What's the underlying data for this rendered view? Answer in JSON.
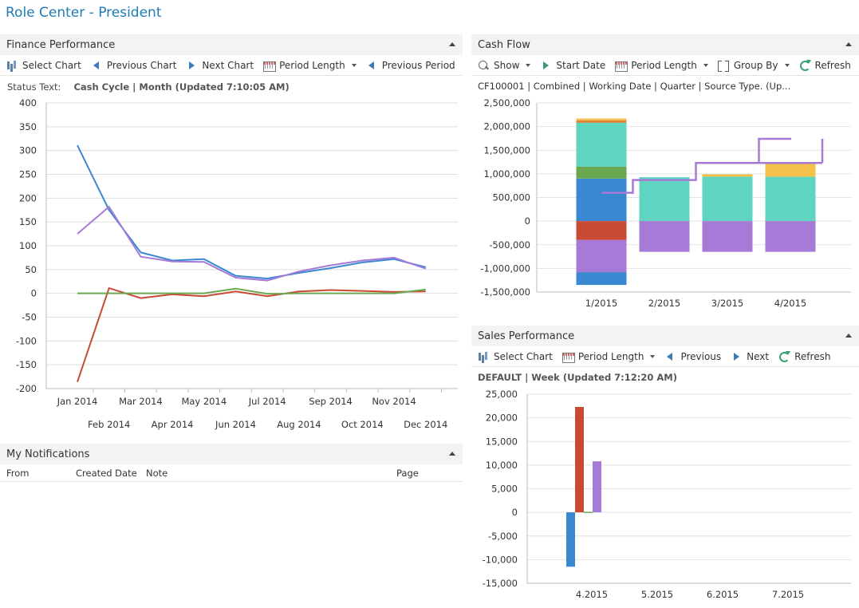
{
  "page": {
    "title": "Role Center - President"
  },
  "finance": {
    "title": "Finance Performance",
    "toolbar": {
      "select_chart": "Select Chart",
      "previous_chart": "Previous Chart",
      "next_chart": "Next Chart",
      "period_length": "Period Length",
      "previous_period": "Previous Period",
      "more": "»"
    },
    "status_label": "Status Text:",
    "status_value": "Cash Cycle | Month (Updated  7:10:05 AM)"
  },
  "cashflow": {
    "title": "Cash Flow",
    "toolbar": {
      "show": "Show",
      "start_date": "Start Date",
      "period_length": "Period Length",
      "group_by": "Group By",
      "refresh": "Refresh"
    },
    "subtitle": "CF100001 | Combined | Working Date | Quarter | Source Type.  (Up..."
  },
  "sales": {
    "title": "Sales Performance",
    "toolbar": {
      "select_chart": "Select Chart",
      "period_length": "Period Length",
      "previous": "Previous",
      "next": "Next",
      "refresh": "Refresh"
    },
    "subtitle": "DEFAULT | Week (Updated  7:12:20 AM)"
  },
  "notifications": {
    "title": "My Notifications",
    "columns": [
      "From",
      "Created Date",
      "Note",
      "Page"
    ]
  },
  "colors": {
    "title_blue": "#1f7bb5",
    "blue": "#3a88d0",
    "red": "#c84a35",
    "green": "#6aa84f",
    "purple": "#a67ad6",
    "teal": "#5fd4c0",
    "orange": "#f4c04a",
    "dark_orange": "#d9833a"
  },
  "chart_data": [
    {
      "id": "finance_performance",
      "type": "line",
      "categories": [
        "Jan 2014",
        "Feb 2014",
        "Mar 2014",
        "Apr 2014",
        "May 2014",
        "Jun 2014",
        "Jul 2014",
        "Aug 2014",
        "Sep 2014",
        "Oct 2014",
        "Nov 2014",
        "Dec 2014"
      ],
      "ylim": [
        -200,
        400
      ],
      "yticks": [
        400,
        350,
        300,
        250,
        200,
        150,
        100,
        50,
        0,
        -50,
        -100,
        -150,
        -200
      ],
      "grid": true,
      "series": [
        {
          "color": "#3a88d0",
          "values": [
            311,
            175,
            86,
            69,
            72,
            37,
            31,
            43,
            53,
            65,
            72,
            55
          ]
        },
        {
          "color": "#a67ad6",
          "values": [
            125,
            182,
            77,
            67,
            66,
            33,
            27,
            46,
            59,
            69,
            75,
            52
          ]
        },
        {
          "color": "#c84a35",
          "values": [
            -186,
            11,
            -10,
            -2,
            -6,
            4,
            -6,
            4,
            7,
            5,
            3,
            4
          ]
        },
        {
          "color": "#6aa84f",
          "values": [
            0,
            0,
            0,
            0,
            0,
            10,
            -1,
            0,
            0,
            0,
            0,
            8
          ]
        }
      ]
    },
    {
      "id": "cash_flow",
      "type": "bar",
      "categories": [
        "1/2015",
        "2/2015",
        "3/2015",
        "4/2015"
      ],
      "ylim": [
        -1500000,
        2500000
      ],
      "yticks": [
        "2,500,000",
        "2,000,000",
        "1,500,000",
        "1,000,000",
        "500,000",
        "0",
        "-500,000",
        "-1,000,000",
        "-1,500,000"
      ],
      "yticks_values": [
        2500000,
        2000000,
        1500000,
        1000000,
        500000,
        0,
        -500000,
        -1000000,
        -1500000
      ],
      "stacks": [
        [
          {
            "color": "#3a88d0",
            "from": 0,
            "to": 900000
          },
          {
            "color": "#6aa84f",
            "from": 900000,
            "to": 1150000
          },
          {
            "color": "#5fd4c0",
            "from": 1150000,
            "to": 2080000
          },
          {
            "color": "#d9833a",
            "from": 2080000,
            "to": 2130000
          },
          {
            "color": "#f4c04a",
            "from": 2130000,
            "to": 2170000
          },
          {
            "color": "#c84a35",
            "from": 0,
            "to": -400000
          },
          {
            "color": "#a67ad6",
            "from": -400000,
            "to": -1080000
          },
          {
            "color": "#3a88d0",
            "from": -1080000,
            "to": -1350000
          }
        ],
        [
          {
            "color": "#5fd4c0",
            "from": 0,
            "to": 930000
          },
          {
            "color": "#a67ad6",
            "from": 0,
            "to": -650000
          }
        ],
        [
          {
            "color": "#5fd4c0",
            "from": 0,
            "to": 940000
          },
          {
            "color": "#f4c04a",
            "from": 940000,
            "to": 990000
          },
          {
            "color": "#a67ad6",
            "from": 0,
            "to": -650000
          }
        ],
        [
          {
            "color": "#5fd4c0",
            "from": 0,
            "to": 940000
          },
          {
            "color": "#f4c04a",
            "from": 940000,
            "to": 1230000
          },
          {
            "color": "#a67ad6",
            "from": 0,
            "to": -650000
          }
        ]
      ],
      "step_line": {
        "color": "#a67ad6",
        "values": [
          600000,
          870000,
          1230000,
          1740000
        ]
      }
    },
    {
      "id": "sales_performance",
      "type": "bar",
      "categories": [
        "4.2015",
        "5.2015",
        "6.2015",
        "7.2015"
      ],
      "ylim": [
        -15000,
        25000
      ],
      "yticks": [
        "25,000",
        "20,000",
        "15,000",
        "10,000",
        "5,000",
        "0",
        "-5,000",
        "-10,000",
        "-15,000"
      ],
      "yticks_values": [
        25000,
        20000,
        15000,
        10000,
        5000,
        0,
        -5000,
        -10000,
        -15000
      ],
      "series": [
        {
          "color": "#3a88d0",
          "values": [
            -11500,
            0,
            0,
            0
          ]
        },
        {
          "color": "#c84a35",
          "values": [
            22300,
            0,
            0,
            0
          ]
        },
        {
          "color": "#6aa84f",
          "values": [
            0,
            0,
            0,
            0
          ]
        },
        {
          "color": "#a67ad6",
          "values": [
            10800,
            0,
            0,
            0
          ]
        }
      ]
    }
  ]
}
